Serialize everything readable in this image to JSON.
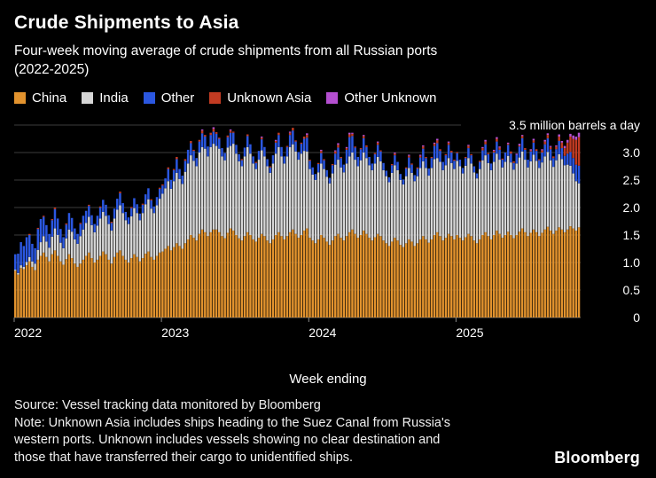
{
  "title": "Crude Shipments to Asia",
  "subtitle_lines": [
    "Four-week moving average of crude shipments from all Russian ports",
    "(2022-2025)"
  ],
  "x_axis_title": "Week ending",
  "source_line": "Source: Vessel tracking data monitored by Bloomberg",
  "note_lines": [
    "Note: Unknown Asia includes ships heading to the Suez Canal from Russia's",
    "western ports. Unknown includes vessels showing no clear destination and",
    "those that have transferred their cargo to unidentified ships."
  ],
  "brand": "Bloomberg",
  "colors": {
    "background": "#000000",
    "text": "#ffffff",
    "gridline": "#3b3b3b",
    "zero_line": "#6e6e6e",
    "tick": "#8a8a8a"
  },
  "chart_data": {
    "type": "bar",
    "stacked": true,
    "x_unit": "week",
    "x_range": "Jan 2022 - Nov 2025",
    "y_unit": "million barrels a day",
    "ylim": [
      0,
      3.5
    ],
    "y_ticks": [
      0,
      0.5,
      1.0,
      1.5,
      2.0,
      2.5,
      3.0
    ],
    "y_top_tick": 3.5,
    "y_top_label": "3.5 million barrels a day",
    "year_labels": [
      "2022",
      "2023",
      "2024",
      "2025"
    ],
    "year_tick_indices": [
      0,
      52,
      104,
      156
    ],
    "legend": [
      "China",
      "India",
      "Other",
      "Unknown Asia",
      "Other Unknown"
    ],
    "series": [
      {
        "name": "China",
        "color": "#E2932E",
        "values": [
          0.85,
          0.78,
          0.9,
          0.88,
          0.95,
          1.02,
          0.92,
          0.86,
          1.05,
          1.12,
          1.18,
          1.1,
          1.02,
          1.15,
          1.22,
          1.12,
          1.02,
          0.96,
          1.06,
          1.15,
          1.08,
          0.98,
          0.92,
          0.98,
          1.05,
          1.12,
          1.18,
          1.08,
          1,
          1.05,
          1.12,
          1.2,
          1.15,
          1.05,
          0.98,
          1.1,
          1.18,
          1.22,
          1.12,
          1.05,
          1,
          1.08,
          1.15,
          1.1,
          1.02,
          1.08,
          1.16,
          1.2,
          1.1,
          1.05,
          1.12,
          1.18,
          1.2,
          1.25,
          1.3,
          1.22,
          1.28,
          1.35,
          1.3,
          1.25,
          1.35,
          1.42,
          1.5,
          1.45,
          1.4,
          1.52,
          1.6,
          1.55,
          1.48,
          1.55,
          1.6,
          1.6,
          1.55,
          1.48,
          1.44,
          1.54,
          1.62,
          1.58,
          1.5,
          1.44,
          1.4,
          1.48,
          1.55,
          1.5,
          1.42,
          1.38,
          1.45,
          1.52,
          1.48,
          1.4,
          1.35,
          1.42,
          1.5,
          1.55,
          1.48,
          1.42,
          1.48,
          1.55,
          1.6,
          1.52,
          1.45,
          1.5,
          1.58,
          1.62,
          1.45,
          1.4,
          1.35,
          1.42,
          1.5,
          1.45,
          1.38,
          1.32,
          1.4,
          1.48,
          1.52,
          1.45,
          1.4,
          1.48,
          1.55,
          1.6,
          1.52,
          1.45,
          1.5,
          1.58,
          1.52,
          1.45,
          1.4,
          1.46,
          1.52,
          1.48,
          1.4,
          1.35,
          1.3,
          1.38,
          1.45,
          1.4,
          1.32,
          1.28,
          1.35,
          1.42,
          1.38,
          1.3,
          1.35,
          1.42,
          1.48,
          1.42,
          1.36,
          1.42,
          1.5,
          1.55,
          1.48,
          1.4,
          1.45,
          1.52,
          1.48,
          1.42,
          1.5,
          1.45,
          1.4,
          1.46,
          1.52,
          1.48,
          1.4,
          1.35,
          1.42,
          1.5,
          1.55,
          1.48,
          1.42,
          1.5,
          1.58,
          1.52,
          1.45,
          1.5,
          1.56,
          1.5,
          1.44,
          1.5,
          1.56,
          1.62,
          1.55,
          1.48,
          1.54,
          1.6,
          1.55,
          1.48,
          1.54,
          1.6,
          1.65,
          1.58,
          1.52,
          1.58,
          1.64,
          1.6,
          1.55,
          1.6,
          1.66,
          1.62,
          1.58,
          1.64
        ]
      },
      {
        "name": "India",
        "color": "#D6D6D6",
        "values": [
          0.02,
          0.03,
          0.05,
          0.04,
          0.06,
          0.08,
          0.1,
          0.12,
          0.18,
          0.25,
          0.3,
          0.28,
          0.25,
          0.32,
          0.4,
          0.38,
          0.34,
          0.3,
          0.38,
          0.45,
          0.48,
          0.44,
          0.42,
          0.5,
          0.55,
          0.6,
          0.65,
          0.6,
          0.55,
          0.62,
          0.68,
          0.72,
          0.7,
          0.65,
          0.6,
          0.7,
          0.78,
          0.82,
          0.78,
          0.72,
          0.7,
          0.76,
          0.84,
          0.8,
          0.75,
          0.82,
          0.9,
          0.95,
          0.88,
          0.85,
          0.92,
          0.98,
          1.05,
          1.1,
          1.18,
          1.12,
          1.2,
          1.28,
          1.22,
          1.18,
          1.3,
          1.38,
          1.45,
          1.4,
          1.35,
          1.48,
          1.5,
          1.52,
          1.45,
          1.55,
          1.56,
          1.52,
          1.52,
          1.45,
          1.42,
          1.55,
          1.5,
          1.58,
          1.48,
          1.4,
          1.35,
          1.45,
          1.55,
          1.48,
          1.38,
          1.32,
          1.42,
          1.52,
          1.45,
          1.35,
          1.28,
          1.38,
          1.48,
          1.55,
          1.45,
          1.38,
          1.45,
          1.55,
          1.55,
          1.5,
          1.42,
          1.48,
          1.45,
          1.4,
          1.25,
          1.2,
          1.15,
          1.22,
          1.3,
          1.25,
          1.18,
          1.12,
          1.22,
          1.3,
          1.35,
          1.28,
          1.24,
          1.32,
          1.38,
          1.4,
          1.35,
          1.3,
          1.36,
          1.42,
          1.38,
          1.32,
          1.28,
          1.34,
          1.4,
          1.36,
          1.28,
          1.22,
          1.16,
          1.25,
          1.32,
          1.28,
          1.18,
          1.14,
          1.22,
          1.3,
          1.25,
          1.18,
          1.22,
          1.3,
          1.36,
          1.3,
          1.22,
          1.3,
          1.38,
          1.35,
          1.35,
          1.28,
          1.32,
          1.38,
          1.33,
          1.28,
          1.35,
          1.3,
          1.22,
          1.3,
          1.38,
          1.32,
          1.24,
          1.18,
          1.28,
          1.36,
          1.4,
          1.33,
          1.26,
          1.33,
          1.4,
          1.35,
          1.28,
          1.33,
          1.38,
          1.32,
          1.25,
          1.3,
          1.35,
          1.4,
          1.32,
          1.25,
          1.3,
          1.36,
          1.3,
          1.24,
          1.28,
          1.33,
          1.36,
          1.28,
          1.22,
          1.28,
          1.33,
          1.28,
          1.22,
          1.18,
          1.1,
          1,
          0.9,
          0.8
        ]
      },
      {
        "name": "Other",
        "color": "#2B57E0",
        "values": [
          0.28,
          0.35,
          0.42,
          0.38,
          0.45,
          0.4,
          0.32,
          0.28,
          0.38,
          0.42,
          0.35,
          0.3,
          0.25,
          0.3,
          0.35,
          0.3,
          0.25,
          0.2,
          0.25,
          0.3,
          0.25,
          0.2,
          0.18,
          0.22,
          0.25,
          0.22,
          0.2,
          0.18,
          0.15,
          0.18,
          0.2,
          0.22,
          0.2,
          0.16,
          0.14,
          0.18,
          0.2,
          0.22,
          0.18,
          0.15,
          0.12,
          0.15,
          0.18,
          0.16,
          0.12,
          0.15,
          0.18,
          0.2,
          0.15,
          0.12,
          0.15,
          0.18,
          0.15,
          0.18,
          0.22,
          0.16,
          0.2,
          0.25,
          0.18,
          0.15,
          0.2,
          0.25,
          0.22,
          0.18,
          0.15,
          0.2,
          0.25,
          0.22,
          0.18,
          0.22,
          0.22,
          0.22,
          0.18,
          0.15,
          0.13,
          0.19,
          0.24,
          0.2,
          0.16,
          0.13,
          0.11,
          0.16,
          0.2,
          0.17,
          0.13,
          0.11,
          0.16,
          0.2,
          0.17,
          0.13,
          0.1,
          0.15,
          0.2,
          0.22,
          0.17,
          0.13,
          0.17,
          0.22,
          0.25,
          0.18,
          0.14,
          0.18,
          0.22,
          0.25,
          0.15,
          0.13,
          0.11,
          0.15,
          0.19,
          0.16,
          0.12,
          0.1,
          0.15,
          0.2,
          0.22,
          0.17,
          0.14,
          0.25,
          0.35,
          0.3,
          0.22,
          0.17,
          0.2,
          0.26,
          0.2,
          0.15,
          0.12,
          0.17,
          0.22,
          0.18,
          0.13,
          0.1,
          0.09,
          0.14,
          0.18,
          0.15,
          0.11,
          0.09,
          0.14,
          0.19,
          0.15,
          0.11,
          0.14,
          0.19,
          0.23,
          0.18,
          0.13,
          0.18,
          0.24,
          0.27,
          0.2,
          0.15,
          0.18,
          0.24,
          0.19,
          0.15,
          0.14,
          0.12,
          0.1,
          0.14,
          0.18,
          0.15,
          0.11,
          0.09,
          0.13,
          0.18,
          0.2,
          0.16,
          0.12,
          0.17,
          0.22,
          0.18,
          0.14,
          0.17,
          0.2,
          0.16,
          0.12,
          0.16,
          0.2,
          0.24,
          0.18,
          0.14,
          0.18,
          0.22,
          0.18,
          0.14,
          0.18,
          0.22,
          0.25,
          0.2,
          0.16,
          0.2,
          0.24,
          0.2,
          0.17,
          0.2,
          0.25,
          0.28,
          0.3,
          0.32
        ]
      },
      {
        "name": "Unknown Asia",
        "color": "#C23B22",
        "values": [
          0,
          0,
          0,
          0,
          0,
          0.02,
          0,
          0,
          0.02,
          0,
          0.02,
          0,
          0,
          0.02,
          0.03,
          0,
          0,
          0,
          0.02,
          0,
          0,
          0,
          0,
          0.02,
          0,
          0,
          0.02,
          0,
          0,
          0,
          0.02,
          0,
          0,
          0,
          0.02,
          0,
          0,
          0.03,
          0,
          0,
          0,
          0.02,
          0,
          0,
          0,
          0.02,
          0,
          0,
          0.02,
          0,
          0,
          0.02,
          0.02,
          0,
          0.03,
          0,
          0.02,
          0.04,
          0,
          0,
          0.03,
          0,
          0.04,
          0.02,
          0,
          0.03,
          0.05,
          0.03,
          0,
          0.04,
          0.05,
          0.03,
          0.02,
          0,
          0,
          0.03,
          0.04,
          0.02,
          0,
          0,
          0.02,
          0,
          0.03,
          0,
          0,
          0.02,
          0,
          0.03,
          0,
          0,
          0.02,
          0,
          0.03,
          0.04,
          0,
          0,
          0.02,
          0.04,
          0.05,
          0.02,
          0,
          0.02,
          0.04,
          0.05,
          0.02,
          0,
          0,
          0.02,
          0.04,
          0.02,
          0,
          0,
          0.02,
          0.04,
          0.05,
          0.02,
          0,
          0.03,
          0.05,
          0.04,
          0.02,
          0,
          0.02,
          0.04,
          0.03,
          0,
          0,
          0.02,
          0.04,
          0.02,
          0,
          0,
          0,
          0.02,
          0.03,
          0,
          0,
          0,
          0.02,
          0.03,
          0.02,
          0,
          0.02,
          0.03,
          0.04,
          0.02,
          0,
          0.02,
          0.04,
          0.05,
          0.03,
          0,
          0.02,
          0.04,
          0.03,
          0.02,
          0.02,
          0,
          0,
          0.02,
          0.04,
          0.02,
          0,
          0,
          0.02,
          0.04,
          0.05,
          0.02,
          0,
          0.03,
          0.05,
          0.04,
          0.02,
          0,
          0.02,
          0.04,
          0.03,
          0,
          0.02,
          0.04,
          0.03,
          0,
          0.02,
          0.04,
          0.03,
          0.02,
          0.04,
          0.05,
          0.06,
          0.04,
          0.03,
          0.05,
          0.08,
          0.1,
          0.14,
          0.2,
          0.28,
          0.35,
          0.45,
          0.52
        ]
      },
      {
        "name": "Other Unknown",
        "color": "#B44FD0",
        "values": [
          0,
          0,
          0,
          0,
          0,
          0,
          0,
          0,
          0,
          0,
          0,
          0,
          0,
          0,
          0,
          0,
          0,
          0,
          0,
          0,
          0,
          0,
          0,
          0,
          0,
          0,
          0,
          0,
          0,
          0,
          0,
          0,
          0,
          0,
          0,
          0,
          0,
          0,
          0,
          0,
          0,
          0,
          0,
          0,
          0,
          0,
          0,
          0,
          0,
          0,
          0,
          0,
          0,
          0,
          0,
          0,
          0,
          0,
          0,
          0,
          0,
          0,
          0,
          0,
          0,
          0,
          0.02,
          0,
          0,
          0,
          0.03,
          0,
          0,
          0,
          0,
          0,
          0.02,
          0,
          0,
          0,
          0,
          0,
          0,
          0,
          0,
          0,
          0,
          0.02,
          0,
          0,
          0,
          0,
          0.02,
          0,
          0,
          0,
          0,
          0.02,
          0,
          0,
          0,
          0,
          0,
          0.03,
          0,
          0,
          0,
          0,
          0.02,
          0,
          0,
          0,
          0,
          0.02,
          0.03,
          0,
          0,
          0.02,
          0.03,
          0.02,
          0,
          0,
          0,
          0.02,
          0,
          0,
          0,
          0,
          0.02,
          0,
          0,
          0,
          0,
          0,
          0.02,
          0,
          0,
          0,
          0,
          0.02,
          0,
          0,
          0,
          0.02,
          0.02,
          0,
          0,
          0,
          0.02,
          0.03,
          0,
          0,
          0,
          0.02,
          0,
          0,
          0,
          0,
          0,
          0,
          0.02,
          0,
          0,
          0,
          0,
          0.02,
          0.03,
          0,
          0,
          0.02,
          0.03,
          0.02,
          0,
          0,
          0.02,
          0,
          0,
          0.02,
          0.03,
          0.02,
          0,
          0,
          0.02,
          0.03,
          0,
          0,
          0.02,
          0.03,
          0.03,
          0.02,
          0,
          0.02,
          0.04,
          0.03,
          0.04,
          0.05,
          0.05,
          0.06,
          0.06,
          0.08
        ]
      }
    ]
  }
}
